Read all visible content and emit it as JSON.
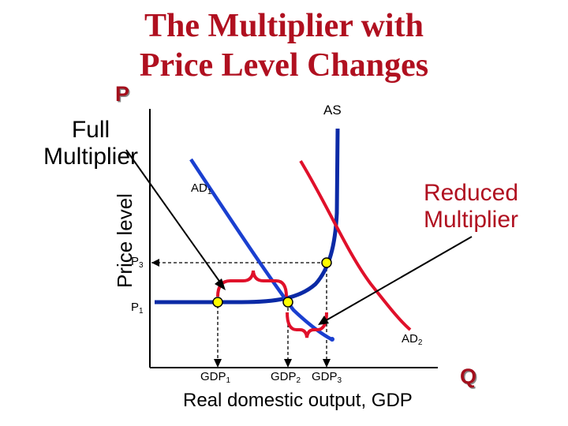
{
  "title_line1": "The Multiplier with",
  "title_line2": "Price Level Changes",
  "axis": {
    "y": "P",
    "x": "Q",
    "ylabel": "Price level",
    "xlabel": "Real domestic output, GDP"
  },
  "annotations": {
    "full_line1": "Full",
    "full_line2": "Multiplier",
    "reduced_line1": "Reduced",
    "reduced_line2": "Multiplier"
  },
  "curves": {
    "as": "AS",
    "ad1": "AD",
    "ad1_sub": "1",
    "ad2": "AD",
    "ad2_sub": "2"
  },
  "price_levels": [
    {
      "label": "P",
      "sub": "3"
    },
    {
      "label": "P",
      "sub": "1"
    }
  ],
  "gdp_levels": [
    {
      "label": "GDP",
      "sub": "1"
    },
    {
      "label": "GDP",
      "sub": "2"
    },
    {
      "label": "GDP",
      "sub": "3"
    }
  ],
  "colors": {
    "title": "#b01020",
    "as_curve": "#0b2aa6",
    "ad1_curve": "#1a3fd0",
    "ad2_curve": "#e0102a",
    "braces": "#e0102a",
    "points": "#ffff00"
  }
}
